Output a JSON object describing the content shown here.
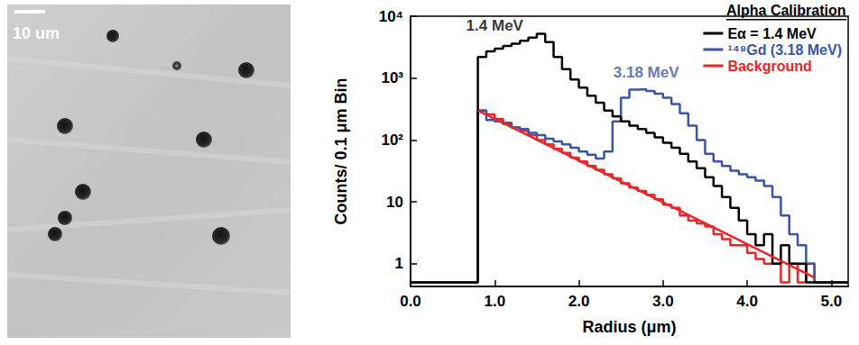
{
  "image": {
    "scale_label": "10 um"
  },
  "chart_data": {
    "type": "histogram",
    "xlabel": "Radius (μm)",
    "ylabel": "Counts/ 0.1 μm Bin",
    "xlim": [
      0,
      5.2
    ],
    "ylim": [
      0.43,
      10000
    ],
    "log": "y",
    "grid": false,
    "legend": "upper right",
    "legend_title": "Alpha Calibration",
    "xticks": [
      {
        "value": 0,
        "label": "0.0"
      },
      {
        "value": 1,
        "label": "1.0"
      },
      {
        "value": 2,
        "label": "2.0"
      },
      {
        "value": 3,
        "label": "3.0"
      },
      {
        "value": 4,
        "label": "4.0"
      },
      {
        "value": 5,
        "label": "5.0"
      }
    ],
    "yticks": [
      1,
      10,
      {
        "value": 100,
        "label": "10²"
      },
      {
        "value": 1000,
        "label": "10³"
      },
      {
        "value": 10000,
        "label": "10⁴"
      }
    ],
    "bins": [
      0,
      0.1,
      0.2,
      0.3,
      0.4,
      0.5,
      0.6,
      0.7,
      0.8,
      0.9,
      1.0,
      1.1,
      1.2,
      1.3,
      1.4,
      1.5,
      1.6,
      1.7,
      1.8,
      1.9,
      2.0,
      2.1,
      2.2,
      2.3,
      2.4,
      2.5,
      2.6,
      2.7,
      2.8,
      2.9,
      3.0,
      3.1,
      3.2,
      3.3,
      3.4,
      3.5,
      3.6,
      3.7,
      3.8,
      3.9,
      4.0,
      4.1,
      4.2,
      4.3,
      4.4,
      4.5,
      4.6,
      4.7,
      4.8,
      4.9,
      5.0,
      5.1,
      5.2
    ],
    "series": [
      {
        "name": "Eα = 1.4 MeV",
        "color": "#000000",
        "line_style": "step",
        "values": [
          0.5,
          0.5,
          0.5,
          0.5,
          0.5,
          0.5,
          0.5,
          0.5,
          2200,
          2700,
          3000,
          3300,
          3600,
          4000,
          4500,
          5200,
          3800,
          2200,
          1400,
          950,
          700,
          520,
          400,
          300,
          240,
          200,
          170,
          150,
          130,
          110,
          90,
          75,
          60,
          45,
          35,
          25,
          18,
          12,
          8,
          5,
          3,
          2,
          3,
          1,
          2,
          1,
          1,
          0.5,
          0.5,
          0.5,
          0.5,
          0.5
        ]
      },
      {
        "name": "¹⁴⁸Gd (3.18 MeV)",
        "color": "#3a55a4",
        "line_style": "step",
        "values": [
          0.5,
          0.5,
          0.5,
          0.5,
          0.5,
          0.5,
          0.5,
          0.5,
          300,
          210,
          200,
          180,
          160,
          150,
          130,
          120,
          105,
          95,
          85,
          75,
          65,
          58,
          50,
          65,
          200,
          480,
          650,
          660,
          620,
          560,
          480,
          380,
          270,
          170,
          100,
          60,
          45,
          38,
          32,
          28,
          25,
          22,
          18,
          12,
          6,
          3,
          2,
          1,
          0.5,
          0.5,
          0.5,
          0.5
        ]
      },
      {
        "name": "Background",
        "color": "#e8262a",
        "line_style": "step",
        "values": [
          0.5,
          0.5,
          0.5,
          0.5,
          0.5,
          0.5,
          0.5,
          0.5,
          300,
          260,
          220,
          190,
          160,
          140,
          120,
          100,
          85,
          72,
          62,
          52,
          45,
          38,
          33,
          28,
          24,
          20,
          17,
          15,
          13,
          11,
          9,
          8,
          6,
          5,
          4.5,
          4,
          3,
          2.5,
          2,
          2,
          1.5,
          1.2,
          1,
          1,
          0.5,
          1,
          0.5,
          1,
          0.5,
          0.5,
          0.5,
          0.5
        ],
        "fit": {
          "x": [
            0.8,
            4.8
          ],
          "values": [
            300,
            0.6
          ]
        }
      }
    ],
    "annotations": [
      {
        "text": "1.4 MeV",
        "x": 1.0,
        "y": 7000,
        "color": "#000000"
      },
      {
        "text": "3.18 MeV",
        "x": 2.8,
        "y": 1250,
        "color": "#3a55a4"
      }
    ]
  }
}
